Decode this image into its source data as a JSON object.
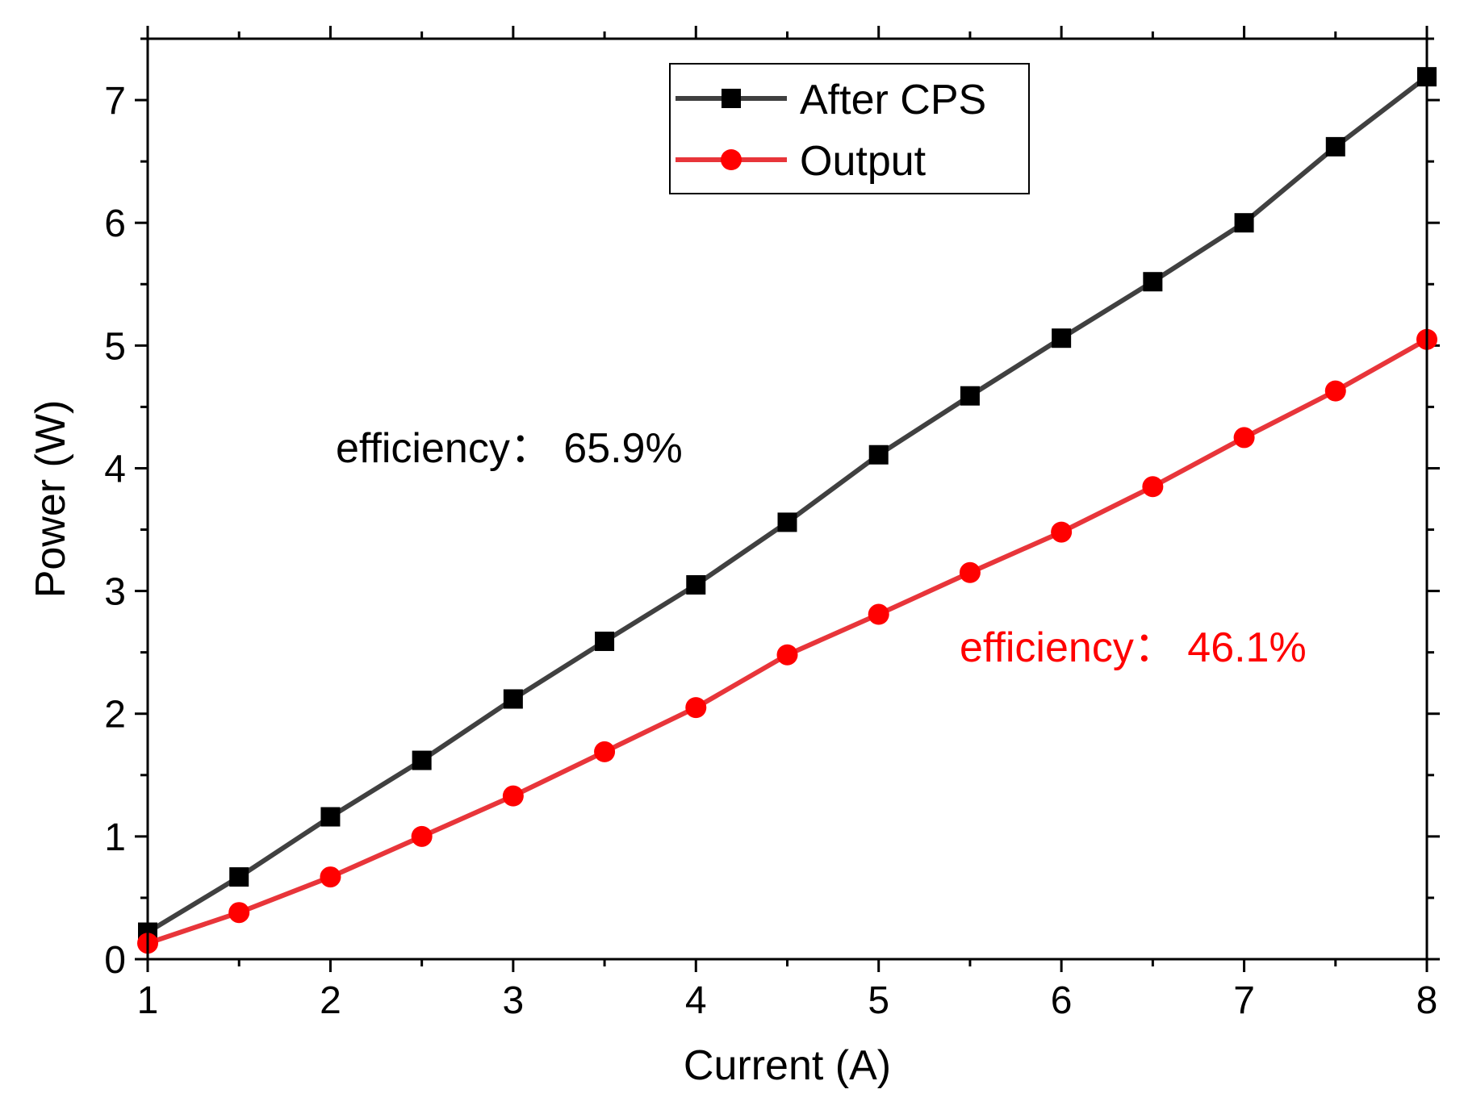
{
  "chart_data": {
    "type": "line",
    "title": "",
    "xlabel": "Current (A)",
    "ylabel": "Power (W)",
    "xlim": [
      1,
      8
    ],
    "ylim": [
      0,
      7.5
    ],
    "xticks": [
      1,
      2,
      3,
      4,
      5,
      6,
      7,
      8
    ],
    "yticks": [
      0,
      1,
      2,
      3,
      4,
      5,
      6,
      7
    ],
    "grid": false,
    "legend_position": "top-center",
    "x": [
      1,
      1.5,
      2,
      2.5,
      3,
      3.5,
      4,
      4.5,
      5,
      5.5,
      6,
      6.5,
      7,
      7.5,
      8
    ],
    "series": [
      {
        "name": "After CPS",
        "color": "#404040",
        "marker": "square",
        "marker_color": "#000000",
        "values": [
          0.22,
          0.67,
          1.16,
          1.62,
          2.12,
          2.59,
          3.05,
          3.56,
          4.11,
          4.59,
          5.06,
          5.52,
          6.0,
          6.62,
          7.19
        ]
      },
      {
        "name": "Output",
        "color": "#e8353a",
        "marker": "circle",
        "marker_color": "#ff0000",
        "values": [
          0.13,
          0.38,
          0.67,
          1.0,
          1.33,
          1.69,
          2.05,
          2.48,
          2.81,
          3.15,
          3.48,
          3.85,
          4.25,
          4.63,
          5.05
        ]
      }
    ],
    "annotations": [
      {
        "text": "efficiency： 65.9%",
        "color": "#000000"
      },
      {
        "text": "efficiency： 46.1%",
        "color": "#ff0000"
      }
    ]
  }
}
